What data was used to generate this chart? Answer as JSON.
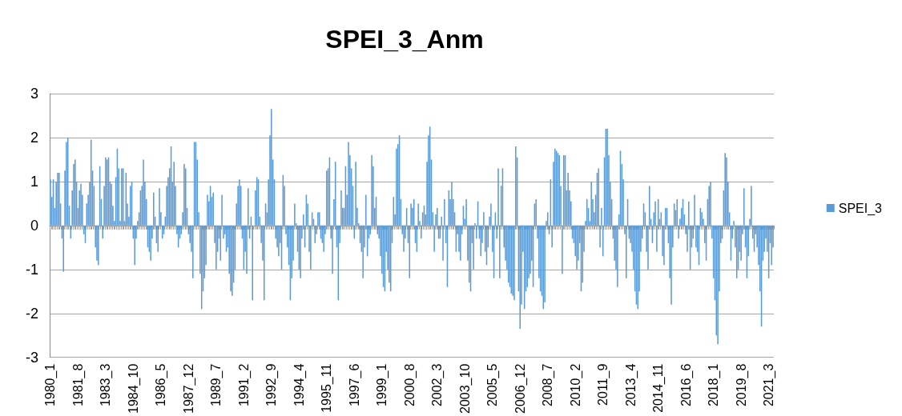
{
  "chart_data": {
    "type": "bar",
    "title": "SPEI_3_Anm",
    "categories": [
      "1980_1",
      null,
      null,
      null,
      null,
      null,
      null,
      null,
      null,
      null,
      null,
      null,
      null,
      null,
      null,
      null,
      null,
      null,
      null,
      "1981_8",
      null,
      null,
      null,
      null,
      null,
      null,
      null,
      null,
      null,
      null,
      null,
      null,
      null,
      null,
      null,
      null,
      null,
      null,
      "1983_3",
      null,
      null,
      null,
      null,
      null,
      null,
      null,
      null,
      null,
      null,
      null,
      null,
      null,
      null,
      null,
      null,
      null,
      null,
      "1984_10",
      null,
      null,
      null,
      null,
      null,
      null,
      null,
      null,
      null,
      null,
      null,
      null,
      null,
      null,
      null,
      null,
      null,
      null,
      "1986_5",
      null,
      null,
      null,
      null,
      null,
      null,
      null,
      null,
      null,
      null,
      null,
      null,
      null,
      null,
      null,
      null,
      null,
      null,
      "1987_12",
      null,
      null,
      null,
      null,
      null,
      null,
      null,
      null,
      null,
      null,
      null,
      null,
      null,
      null,
      null,
      null,
      null,
      null,
      "1989_7",
      null,
      null,
      null,
      null,
      null,
      null,
      null,
      null,
      null,
      null,
      null,
      null,
      null,
      null,
      null,
      null,
      null,
      null,
      "1991_2",
      null,
      null,
      null,
      null,
      null,
      null,
      null,
      null,
      null,
      null,
      null,
      null,
      null,
      null,
      null,
      null,
      null,
      null,
      "1992_9",
      null,
      null,
      null,
      null,
      null,
      null,
      null,
      null,
      null,
      null,
      null,
      null,
      null,
      null,
      null,
      null,
      null,
      null,
      "1994_4",
      null,
      null,
      null,
      null,
      null,
      null,
      null,
      null,
      null,
      null,
      null,
      null,
      null,
      null,
      null,
      null,
      null,
      null,
      "1995_11",
      null,
      null,
      null,
      null,
      null,
      null,
      null,
      null,
      null,
      null,
      null,
      null,
      null,
      null,
      null,
      null,
      null,
      null,
      "1997_6",
      null,
      null,
      null,
      null,
      null,
      null,
      null,
      null,
      null,
      null,
      null,
      null,
      null,
      null,
      null,
      null,
      null,
      null,
      "1999_1",
      null,
      null,
      null,
      null,
      null,
      null,
      null,
      null,
      null,
      null,
      null,
      null,
      null,
      null,
      null,
      null,
      null,
      null,
      "2000_8",
      null,
      null,
      null,
      null,
      null,
      null,
      null,
      null,
      null,
      null,
      null,
      null,
      null,
      null,
      null,
      null,
      null,
      null,
      "2002_3",
      null,
      null,
      null,
      null,
      null,
      null,
      null,
      null,
      null,
      null,
      null,
      null,
      null,
      null,
      null,
      null,
      null,
      null,
      "2003_10",
      null,
      null,
      null,
      null,
      null,
      null,
      null,
      null,
      null,
      null,
      null,
      null,
      null,
      null,
      null,
      null,
      null,
      null,
      "2005_5",
      null,
      null,
      null,
      null,
      null,
      null,
      null,
      null,
      null,
      null,
      null,
      null,
      null,
      null,
      null,
      null,
      null,
      null,
      "2006_12",
      null,
      null,
      null,
      null,
      null,
      null,
      null,
      null,
      null,
      null,
      null,
      null,
      null,
      null,
      null,
      null,
      null,
      null,
      "2008_7",
      null,
      null,
      null,
      null,
      null,
      null,
      null,
      null,
      null,
      null,
      null,
      null,
      null,
      null,
      null,
      null,
      null,
      null,
      "2010_2",
      null,
      null,
      null,
      null,
      null,
      null,
      null,
      null,
      null,
      null,
      null,
      null,
      null,
      null,
      null,
      null,
      null,
      null,
      "2011_9",
      null,
      null,
      null,
      null,
      null,
      null,
      null,
      null,
      null,
      null,
      null,
      null,
      null,
      null,
      null,
      null,
      null,
      null,
      "2013_4",
      null,
      null,
      null,
      null,
      null,
      null,
      null,
      null,
      null,
      null,
      null,
      null,
      null,
      null,
      null,
      null,
      null,
      null,
      "2014_11",
      null,
      null,
      null,
      null,
      null,
      null,
      null,
      null,
      null,
      null,
      null,
      null,
      null,
      null,
      null,
      null,
      null,
      null,
      "2016_6",
      null,
      null,
      null,
      null,
      null,
      null,
      null,
      null,
      null,
      null,
      null,
      null,
      null,
      null,
      null,
      null,
      null,
      null,
      "2018_1",
      null,
      null,
      null,
      null,
      null,
      null,
      null,
      null,
      null,
      null,
      null,
      null,
      null,
      null,
      null,
      null,
      null,
      null,
      "2019_8",
      null,
      null,
      null,
      null,
      null,
      null,
      null,
      null,
      null,
      null,
      null,
      null,
      null,
      null,
      null,
      null,
      null,
      null,
      "2021_3",
      null,
      null,
      null
    ],
    "series": [
      {
        "name": "SPEI_3",
        "color": "#5b9bd5",
        "values": [
          1.05,
          0.65,
          1.05,
          0.4,
          1.0,
          1.2,
          1.2,
          0.5,
          -0.3,
          -1.05,
          1.25,
          1.9,
          2.0,
          0.45,
          -0.3,
          0.8,
          1.4,
          1.5,
          1.0,
          0.4,
          0.8,
          0.95,
          0.7,
          -0.2,
          -0.4,
          0.5,
          0.7,
          1.0,
          1.95,
          1.25,
          0.9,
          -0.5,
          -0.8,
          -0.9,
          1.35,
          0.6,
          -0.3,
          0.9,
          1.55,
          1.5,
          1.55,
          1.0,
          0.95,
          0.45,
          0.1,
          1.1,
          1.75,
          1.3,
          0.1,
          1.3,
          1.3,
          0.1,
          1.2,
          0.5,
          0.2,
          0.9,
          1.0,
          -0.3,
          -0.9,
          -0.3,
          0.1,
          0.3,
          0.8,
          0.9,
          1.5,
          1.0,
          0.6,
          -0.5,
          -0.6,
          -0.8,
          -0.3,
          0.75,
          0.2,
          -0.4,
          -0.6,
          0.85,
          0.3,
          -0.3,
          -0.2,
          0.2,
          0.9,
          1.1,
          1.3,
          1.8,
          1.0,
          1.45,
          0.9,
          -0.2,
          -0.5,
          -0.3,
          -0.2,
          0.3,
          1.4,
          1.3,
          0.4,
          -0.2,
          -0.4,
          -0.6,
          -1.2,
          1.9,
          1.9,
          1.5,
          0.3,
          -1.1,
          -1.9,
          -1.5,
          -1.2,
          -0.9,
          0.7,
          0.55,
          0.9,
          0.65,
          0.75,
          -0.4,
          -1.0,
          -0.6,
          -0.3,
          -0.8,
          0.7,
          -0.3,
          -0.2,
          -0.6,
          -0.5,
          -1.1,
          -1.5,
          -1.6,
          -1.3,
          -1.0,
          0.5,
          0.9,
          1.05,
          0.9,
          -0.3,
          -1.0,
          -0.6,
          -1.1,
          0.85,
          -0.3,
          0.2,
          -1.7,
          0.0,
          0.8,
          1.1,
          1.05,
          0.2,
          -0.4,
          -0.8,
          -1.7,
          0.5,
          0.3,
          1.05,
          2.05,
          2.65,
          1.5,
          1.05,
          -0.3,
          -0.5,
          -0.7,
          -0.4,
          -1.0,
          1.15,
          0.9,
          -0.2,
          -0.5,
          -0.9,
          -1.7,
          -1.2,
          -0.8,
          0.5,
          0.05,
          -0.6,
          -1.0,
          -1.2,
          -0.3,
          0.25,
          -0.5,
          0.7,
          0.5,
          -0.6,
          -1.0,
          0.3,
          0.15,
          -0.4,
          -0.2,
          0.3,
          0.3,
          -0.3,
          -0.4,
          -0.6,
          -0.2,
          1.25,
          1.3,
          1.55,
          -0.3,
          -1.1,
          0.6,
          1.45,
          -0.5,
          -1.7,
          -0.4,
          0.8,
          0.4,
          0.4,
          1.35,
          0.7,
          1.9,
          1.6,
          1.3,
          0.9,
          -0.3,
          1.45,
          0.4,
          0.05,
          -0.4,
          -0.6,
          -1.2,
          -0.5,
          0.7,
          -0.7,
          -0.3,
          -0.2,
          1.6,
          1.35,
          0.4,
          0.65,
          -0.2,
          -0.3,
          -0.7,
          -1.1,
          -1.4,
          -1.5,
          -0.6,
          -1.0,
          -1.3,
          -1.5,
          -0.4,
          0.65,
          0.25,
          1.75,
          1.85,
          2.05,
          0.6,
          -0.2,
          -0.6,
          -0.3,
          0.4,
          -0.4,
          -1.2,
          0.5,
          0.4,
          0.6,
          -0.4,
          -0.6,
          0.5,
          0.1,
          -0.3,
          0.3,
          0.45,
          0.25,
          1.45,
          2.05,
          2.25,
          1.5,
          0.3,
          -0.6,
          0.25,
          0.4,
          -0.3,
          -0.3,
          0.2,
          -0.8,
          0.6,
          -0.4,
          -1.4,
          0.8,
          0.6,
          1.0,
          0.6,
          0.3,
          -0.6,
          -0.2,
          -0.6,
          -0.8,
          -0.2,
          0.45,
          0.15,
          0.6,
          -0.8,
          -1.3,
          -1.5,
          -0.4,
          -1.0,
          0.05,
          -0.3,
          0.55,
          -0.3,
          -0.7,
          -0.4,
          0.3,
          -0.6,
          -0.9,
          -0.5,
          0.2,
          0.5,
          -0.6,
          -1.2,
          0.3,
          -0.3,
          1.3,
          -1.2,
          0.9,
          1.3,
          -0.5,
          -0.8,
          -1.0,
          -1.3,
          -1.4,
          -1.55,
          -1.6,
          -1.7,
          1.8,
          1.55,
          -1.5,
          -2.35,
          -1.8,
          -0.6,
          -1.9,
          -1.5,
          -1.4,
          -1.2,
          -1.1,
          -0.8,
          -1.4,
          0.5,
          0.6,
          -0.3,
          -1.2,
          -1.5,
          -1.6,
          -1.9,
          -1.75,
          0.1,
          0.3,
          -0.2,
          1.05,
          -0.5,
          1.45,
          1.75,
          1.7,
          1.65,
          1.6,
          0.9,
          -1.1,
          1.6,
          1.6,
          0.8,
          1.2,
          0.8,
          0.55,
          -0.3,
          -0.4,
          -0.7,
          -1.0,
          -0.8,
          -0.4,
          -1.5,
          -1.3,
          -0.6,
          0.1,
          0.6,
          0.4,
          0.1,
          1.0,
          0.6,
          0.3,
          0.7,
          1.2,
          1.3,
          -0.5,
          0.4,
          -0.7,
          1.55,
          2.2,
          2.2,
          1.6,
          1.0,
          0.6,
          -0.3,
          -0.8,
          -1.0,
          -1.4,
          0.25,
          1.7,
          1.4,
          1.05,
          -0.2,
          -1.2,
          0.6,
          -0.3,
          -0.4,
          -0.6,
          -1.0,
          -1.5,
          -1.8,
          -1.9,
          -1.5,
          -0.6,
          -0.3,
          0.5,
          0.3,
          -0.6,
          -1.0,
          0.9,
          0.15,
          -0.4,
          0.3,
          0.55,
          -0.6,
          0.6,
          0.15,
          0.3,
          -0.7,
          -0.9,
          0.4,
          0.4,
          -0.4,
          -1.2,
          -1.8,
          -0.5,
          0.5,
          0.35,
          0.6,
          -0.3,
          0.15,
          0.4,
          0.6,
          0.25,
          -0.2,
          -0.6,
          0.55,
          -1.0,
          -0.5,
          -0.3,
          0.7,
          -0.5,
          -0.6,
          -0.9,
          0.4,
          0.3,
          0.15,
          -0.4,
          -0.8,
          0.6,
          0.9,
          1.0,
          -0.3,
          -1.2,
          -1.7,
          -2.5,
          -2.7,
          -1.5,
          -0.4,
          -0.3,
          0.8,
          1.65,
          1.55,
          1.0,
          0.3,
          -0.8,
          -0.3,
          0.1,
          -0.5,
          -1.2,
          -1.0,
          -0.6,
          -0.8,
          -0.2,
          0.85,
          -0.5,
          -1.2,
          -0.7,
          0.15,
          0.9,
          -0.3,
          -0.6,
          -0.2,
          -0.5,
          -0.9,
          -1.5,
          -2.3,
          -0.8,
          -0.6,
          -0.3,
          -0.6,
          -1.2,
          -0.4,
          -0.9,
          -0.5
        ]
      }
    ],
    "ylim": [
      -3,
      3
    ],
    "yticks": [
      -3,
      -2,
      -1,
      0,
      1,
      2,
      3
    ],
    "grid": "y",
    "legend": "right"
  }
}
